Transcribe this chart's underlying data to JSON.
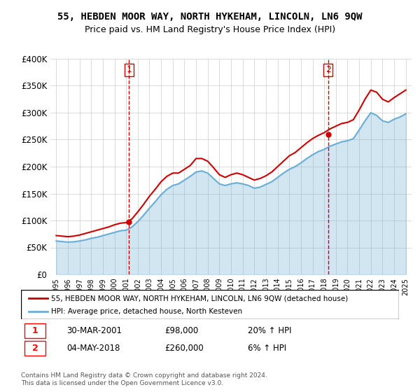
{
  "title": "55, HEBDEN MOOR WAY, NORTH HYKEHAM, LINCOLN, LN6 9QW",
  "subtitle": "Price paid vs. HM Land Registry's House Price Index (HPI)",
  "ylabel": "",
  "ylim": [
    0,
    400000
  ],
  "yticks": [
    0,
    50000,
    100000,
    150000,
    200000,
    250000,
    300000,
    350000,
    400000
  ],
  "ytick_labels": [
    "£0",
    "£50K",
    "£100K",
    "£150K",
    "£200K",
    "£250K",
    "£300K",
    "£350K",
    "£400K"
  ],
  "hpi_color": "#6baed6",
  "price_color": "#cc0000",
  "dashed_color": "#cc0000",
  "background_color": "#ffffff",
  "grid_color": "#cccccc",
  "sale1_year": 2001.25,
  "sale1_price": 98000,
  "sale1_label": "1",
  "sale2_year": 2018.33,
  "sale2_price": 260000,
  "sale2_label": "2",
  "legend_line1": "55, HEBDEN MOOR WAY, NORTH HYKEHAM, LINCOLN, LN6 9QW (detached house)",
  "legend_line2": "HPI: Average price, detached house, North Kesteven",
  "table_row1": [
    "1",
    "30-MAR-2001",
    "£98,000",
    "20% ↑ HPI"
  ],
  "table_row2": [
    "2",
    "04-MAY-2018",
    "£260,000",
    "6% ↑ HPI"
  ],
  "footnote": "Contains HM Land Registry data © Crown copyright and database right 2024.\nThis data is licensed under the Open Government Licence v3.0.",
  "hpi_data_x": [
    1995,
    1995.5,
    1996,
    1996.5,
    1997,
    1997.5,
    1998,
    1998.5,
    1999,
    1999.5,
    2000,
    2000.5,
    2001,
    2001.5,
    2002,
    2002.5,
    2003,
    2003.5,
    2004,
    2004.5,
    2005,
    2005.5,
    2006,
    2006.5,
    2007,
    2007.5,
    2008,
    2008.5,
    2009,
    2009.5,
    2010,
    2010.5,
    2011,
    2011.5,
    2012,
    2012.5,
    2013,
    2013.5,
    2014,
    2014.5,
    2015,
    2015.5,
    2016,
    2016.5,
    2017,
    2017.5,
    2018,
    2018.5,
    2019,
    2019.5,
    2020,
    2020.5,
    2021,
    2021.5,
    2022,
    2022.5,
    2023,
    2023.5,
    2024,
    2024.5,
    2025
  ],
  "hpi_data_y": [
    62000,
    61000,
    60000,
    60500,
    62000,
    64000,
    67000,
    69000,
    72000,
    75000,
    78000,
    81000,
    82000,
    88000,
    98000,
    110000,
    123000,
    135000,
    148000,
    158000,
    165000,
    168000,
    175000,
    182000,
    190000,
    192000,
    188000,
    178000,
    168000,
    165000,
    168000,
    170000,
    168000,
    165000,
    160000,
    162000,
    167000,
    172000,
    180000,
    188000,
    195000,
    200000,
    207000,
    215000,
    222000,
    228000,
    232000,
    238000,
    242000,
    246000,
    248000,
    252000,
    268000,
    285000,
    300000,
    295000,
    285000,
    282000,
    288000,
    292000,
    298000
  ],
  "price_data_x": [
    1995,
    1995.5,
    1996,
    1996.5,
    1997,
    1997.5,
    1998,
    1998.5,
    1999,
    1999.5,
    2000,
    2000.5,
    2001,
    2001.5,
    2002,
    2002.5,
    2003,
    2003.5,
    2004,
    2004.5,
    2005,
    2005.5,
    2006,
    2006.5,
    2007,
    2007.5,
    2008,
    2008.5,
    2009,
    2009.5,
    2010,
    2010.5,
    2011,
    2011.5,
    2012,
    2012.5,
    2013,
    2013.5,
    2014,
    2014.5,
    2015,
    2015.5,
    2016,
    2016.5,
    2017,
    2017.5,
    2018,
    2018.5,
    2019,
    2019.5,
    2020,
    2020.5,
    2021,
    2021.5,
    2022,
    2022.5,
    2023,
    2023.5,
    2024,
    2024.5,
    2025
  ],
  "price_data_y": [
    72000,
    71000,
    70000,
    71000,
    73000,
    76000,
    79000,
    82000,
    85000,
    88000,
    92000,
    95000,
    96000,
    103000,
    116000,
    130000,
    145000,
    158000,
    172000,
    182000,
    188000,
    188000,
    195000,
    202000,
    215000,
    215000,
    210000,
    198000,
    185000,
    180000,
    185000,
    188000,
    185000,
    180000,
    175000,
    178000,
    183000,
    190000,
    200000,
    210000,
    220000,
    226000,
    235000,
    244000,
    252000,
    258000,
    263000,
    270000,
    275000,
    280000,
    282000,
    287000,
    305000,
    325000,
    342000,
    338000,
    325000,
    320000,
    328000,
    335000,
    342000
  ]
}
